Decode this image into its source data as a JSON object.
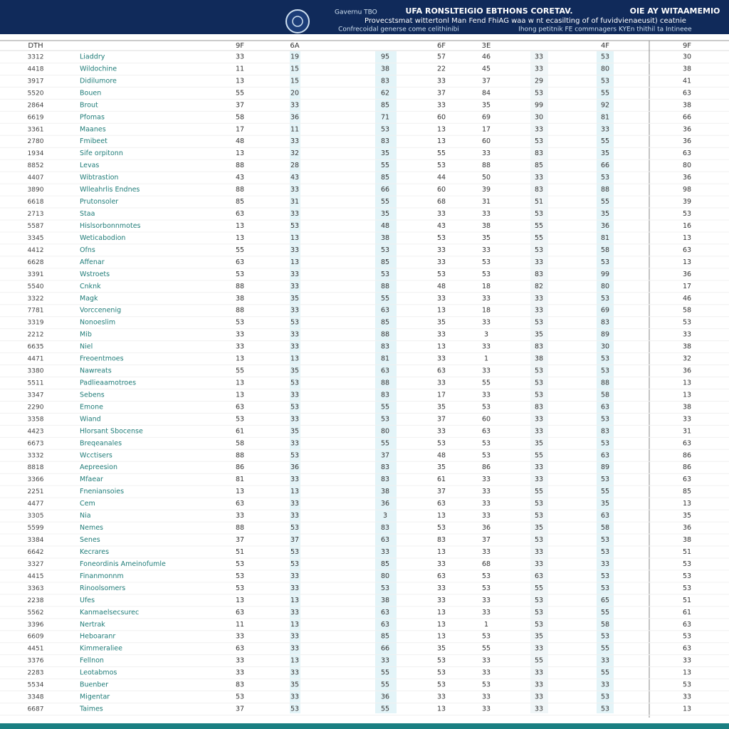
{
  "header": {
    "brand": "Gavernu TBO",
    "title": "UFA RONSLTEIGIO EBTHONS CORETAV.",
    "line": "Provecstsmat wittertonl Man Fend FhiAG waa w nt ecasilting of of fuvidvienaeusit) ceatnie",
    "subtitle": "Confrecoidal generse come celithinibi",
    "right_title": "OIE AY WITAAMEMIO",
    "right_subtitle": "Ihong petitnik FE commnagers KYEn thithil ta Intineee"
  },
  "table": {
    "columns": [
      "DTH",
      null,
      "9F",
      "6A",
      null,
      "6F",
      "3E",
      null,
      "4F",
      "9F"
    ],
    "rows": [
      [
        "3312",
        "Liaddry",
        33,
        19,
        95,
        57,
        46,
        33,
        53,
        30
      ],
      [
        "4418",
        "Wildochine",
        11,
        15,
        38,
        22,
        45,
        33,
        80,
        38
      ],
      [
        "3917",
        "Didilumore",
        13,
        15,
        83,
        33,
        37,
        29,
        53,
        41
      ],
      [
        "5520",
        "Bouen",
        55,
        20,
        62,
        37,
        84,
        53,
        55,
        63
      ],
      [
        "2864",
        "Brout",
        37,
        33,
        85,
        33,
        35,
        99,
        92,
        38
      ],
      [
        "6619",
        "Pfomas",
        58,
        36,
        71,
        60,
        69,
        30,
        81,
        66
      ],
      [
        "3361",
        "Maanes",
        17,
        11,
        53,
        13,
        17,
        33,
        33,
        36
      ],
      [
        "2780",
        "Fmibeet",
        48,
        33,
        83,
        13,
        60,
        53,
        55,
        36
      ],
      [
        "1934",
        "Sife orpitonn",
        13,
        32,
        35,
        55,
        33,
        83,
        35,
        63
      ],
      [
        "8852",
        "Levas",
        88,
        28,
        55,
        53,
        88,
        85,
        66,
        80
      ],
      [
        "4407",
        "Wibtrastion",
        43,
        43,
        85,
        44,
        50,
        33,
        53,
        36
      ],
      [
        "3890",
        "Wlleahrlis Endnes",
        88,
        33,
        66,
        60,
        39,
        83,
        88,
        98
      ],
      [
        "6618",
        "Prutonsoler",
        85,
        31,
        55,
        68,
        31,
        51,
        55,
        39
      ],
      [
        "2713",
        "Staa",
        63,
        33,
        35,
        33,
        33,
        53,
        35,
        53
      ],
      [
        "5587",
        "Hislsorbonnmotes",
        13,
        53,
        48,
        43,
        38,
        55,
        36,
        16
      ],
      [
        "3345",
        "Weticabodion",
        13,
        13,
        38,
        53,
        35,
        55,
        81,
        13
      ],
      [
        "4412",
        "Ofns",
        55,
        33,
        53,
        33,
        33,
        53,
        58,
        63
      ],
      [
        "6628",
        "Affenar",
        63,
        13,
        85,
        33,
        53,
        33,
        53,
        13
      ],
      [
        "3391",
        "Wstroets",
        53,
        33,
        53,
        53,
        53,
        83,
        99,
        36
      ],
      [
        "5540",
        "Cnknk",
        88,
        33,
        88,
        48,
        18,
        82,
        80,
        17
      ],
      [
        "3322",
        "Magk",
        38,
        35,
        55,
        33,
        33,
        33,
        53,
        46
      ],
      [
        "7781",
        "Vorccenenig",
        88,
        33,
        63,
        13,
        18,
        33,
        69,
        58
      ],
      [
        "3319",
        "Nonoeslim",
        53,
        53,
        85,
        35,
        33,
        53,
        83,
        53
      ],
      [
        "2212",
        "Mib",
        33,
        33,
        88,
        33,
        3,
        35,
        89,
        33
      ],
      [
        "6635",
        "Niel",
        33,
        33,
        83,
        13,
        33,
        83,
        30,
        38
      ],
      [
        "4471",
        "Freoentmoes",
        13,
        13,
        81,
        33,
        1,
        38,
        53,
        32
      ],
      [
        "3380",
        "Nawreats",
        55,
        35,
        63,
        63,
        33,
        53,
        53,
        36
      ],
      [
        "5511",
        "Padlieaamotroes",
        13,
        53,
        88,
        33,
        55,
        53,
        88,
        13
      ],
      [
        "3347",
        "Sebens",
        13,
        33,
        83,
        17,
        33,
        53,
        58,
        13
      ],
      [
        "2290",
        "Emone",
        63,
        53,
        55,
        35,
        53,
        83,
        63,
        38
      ],
      [
        "3358",
        "Wiand",
        53,
        33,
        53,
        37,
        60,
        33,
        53,
        33
      ],
      [
        "4423",
        "Hlorsant Sbocense",
        61,
        35,
        80,
        33,
        63,
        33,
        83,
        31
      ],
      [
        "6673",
        "Breqeanales",
        58,
        33,
        55,
        53,
        53,
        35,
        53,
        63
      ],
      [
        "3332",
        "Wcctisers",
        88,
        53,
        37,
        48,
        53,
        55,
        63,
        86
      ],
      [
        "8818",
        "Aepreesion",
        86,
        36,
        83,
        35,
        86,
        33,
        89,
        86
      ],
      [
        "3366",
        "Mfaear",
        81,
        33,
        83,
        61,
        33,
        33,
        53,
        63
      ],
      [
        "2251",
        "Fneniansoies",
        13,
        13,
        38,
        37,
        33,
        55,
        55,
        85
      ],
      [
        "4477",
        "Cem",
        63,
        33,
        36,
        63,
        33,
        53,
        35,
        13
      ],
      [
        "3305",
        "Nia",
        33,
        33,
        3,
        13,
        33,
        53,
        63,
        35
      ],
      [
        "5599",
        "Nemes",
        88,
        53,
        83,
        53,
        36,
        35,
        58,
        36
      ],
      [
        "3384",
        "Senes",
        37,
        37,
        63,
        83,
        37,
        53,
        53,
        38
      ],
      [
        "6642",
        "Kecrares",
        51,
        53,
        33,
        13,
        33,
        33,
        53,
        51
      ],
      [
        "3327",
        "Foneordinis Ameinofumle",
        53,
        53,
        85,
        33,
        68,
        33,
        33,
        53
      ],
      [
        "4415",
        "Finanmonnm",
        53,
        33,
        80,
        63,
        53,
        63,
        53,
        53
      ],
      [
        "3363",
        "Rinoolsomers",
        53,
        33,
        53,
        33,
        53,
        55,
        53,
        53
      ],
      [
        "2238",
        "Ufes",
        13,
        13,
        38,
        33,
        33,
        53,
        65,
        51
      ],
      [
        "5562",
        "Kanmaelsecsurec",
        63,
        33,
        63,
        13,
        33,
        53,
        55,
        61
      ],
      [
        "3396",
        "Nertrak",
        11,
        13,
        63,
        13,
        1,
        53,
        58,
        63
      ],
      [
        "6609",
        "Heboaranr",
        33,
        33,
        85,
        13,
        53,
        35,
        53,
        53
      ],
      [
        "4451",
        "Kimmeraliee",
        63,
        33,
        66,
        35,
        55,
        33,
        55,
        63
      ],
      [
        "3376",
        "Fellnon",
        33,
        13,
        33,
        53,
        33,
        55,
        33,
        33
      ],
      [
        "2283",
        "Leotabmos",
        33,
        33,
        55,
        53,
        33,
        33,
        55,
        13
      ],
      [
        "5534",
        "Buenber",
        83,
        35,
        55,
        53,
        53,
        33,
        33,
        53
      ],
      [
        "3348",
        "Migentar",
        53,
        33,
        36,
        33,
        33,
        33,
        53,
        33
      ],
      [
        "6687",
        "Taimes",
        37,
        53,
        55,
        13,
        33,
        33,
        53,
        13
      ]
    ]
  }
}
